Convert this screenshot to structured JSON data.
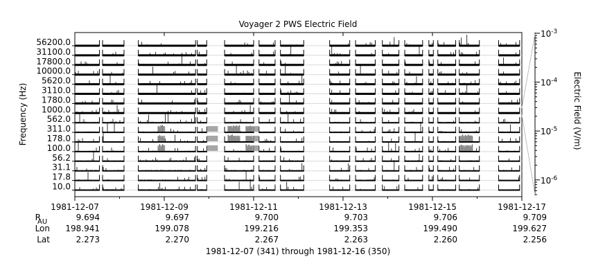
{
  "chart_data": {
    "type": "spectrogram-lines",
    "title": "Voyager 2 PWS Electric Field",
    "ylabel": "Frequency (Hz)",
    "y2label": "Electric Field (V/m)",
    "y2_scale": "log",
    "y2lim": [
      5e-07,
      0.001
    ],
    "y2_ticks": [
      {
        "value": 0.001,
        "base": "10",
        "exp": "-3"
      },
      {
        "value": 0.0001,
        "base": "10",
        "exp": "-4"
      },
      {
        "value": 1e-05,
        "base": "10",
        "exp": "-5"
      },
      {
        "value": 1e-06,
        "base": "10",
        "exp": "-6"
      }
    ],
    "channels": [
      "56200.0",
      "31100.0",
      "17800.0",
      "10000.0",
      "5620.0",
      "3110.0",
      "1780.0",
      "1000.0",
      "562.0",
      "311.0",
      "178.0",
      "100.0",
      "56.2",
      "31.1",
      "17.8",
      "10.0"
    ],
    "x_start": "1981-12-07",
    "x_end": "1981-12-17",
    "x_ticks": [
      "1981-12-07",
      "1981-12-09",
      "1981-12-11",
      "1981-12-13",
      "1981-12-15",
      "1981-12-17"
    ],
    "ephemeris": {
      "rows": [
        {
          "label": "R",
          "sub": "AU",
          "values": [
            "9.694",
            "9.697",
            "9.700",
            "9.703",
            "9.706",
            "9.709"
          ]
        },
        {
          "label": "Lon",
          "sub": "",
          "values": [
            "198.941",
            "199.078",
            "199.216",
            "199.353",
            "199.490",
            "199.627"
          ]
        },
        {
          "label": "Lat",
          "sub": "",
          "values": [
            "2.273",
            "2.270",
            "2.267",
            "2.263",
            "2.260",
            "2.256"
          ]
        }
      ]
    },
    "date_range_label": "1981-12-07 (341) through 1981-12-16 (350)",
    "data_segments_days": [
      [
        0.0,
        0.55
      ],
      [
        0.62,
        1.1
      ],
      [
        1.42,
        2.7
      ],
      [
        2.74,
        2.95
      ],
      [
        3.35,
        4.0
      ],
      [
        4.12,
        4.48
      ],
      [
        4.6,
        5.12
      ],
      [
        5.7,
        6.15
      ],
      [
        6.28,
        6.72
      ],
      [
        6.88,
        7.25
      ],
      [
        7.38,
        7.78
      ],
      [
        7.92,
        8.02
      ],
      [
        8.12,
        8.52
      ],
      [
        8.6,
        9.05
      ],
      [
        9.48,
        9.95
      ]
    ],
    "active_bands": [
      {
        "from_day": 2.95,
        "to_day": 3.2,
        "channels": [
          "311.0",
          "178.0",
          "100.0"
        ]
      },
      {
        "from_day": 3.42,
        "to_day": 3.7,
        "channels": [
          "311.0",
          "178.0"
        ]
      },
      {
        "from_day": 3.82,
        "to_day": 4.12,
        "channels": [
          "311.0",
          "178.0",
          "100.0"
        ]
      },
      {
        "from_day": 1.85,
        "to_day": 2.02,
        "channels": [
          "311.0",
          "178.0",
          "100.0"
        ]
      },
      {
        "from_day": 8.6,
        "to_day": 8.9,
        "channels": [
          "178.0",
          "100.0"
        ]
      }
    ]
  }
}
